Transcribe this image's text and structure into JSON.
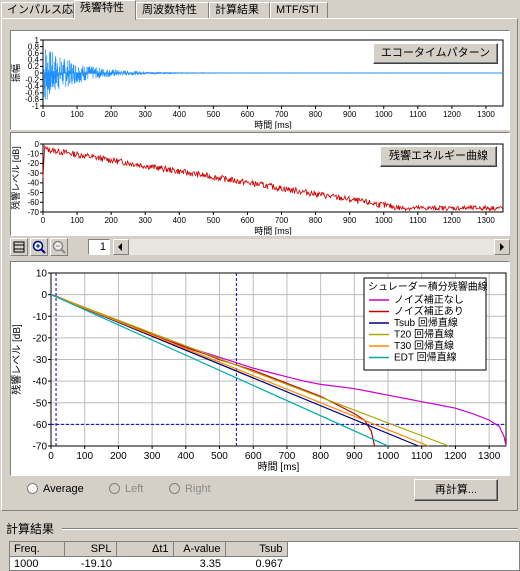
{
  "tabs": [
    {
      "label": "インパルス応答",
      "active": false
    },
    {
      "label": "残響特性",
      "active": true
    },
    {
      "label": "周波数特性",
      "active": false
    },
    {
      "label": "計算結果",
      "active": false
    },
    {
      "label": "MTF/STI",
      "active": false
    }
  ],
  "echo_chart": {
    "button_label": "エコータイムパターン",
    "ylabel": "振幅",
    "xlabel": "時間 [ms]",
    "y_ticks": [
      "1",
      "0.8",
      "0.6",
      "0.4",
      "0.2",
      "0",
      "-0.2",
      "-0.4",
      "-0.6",
      "-0.8",
      "-1"
    ],
    "x_ticks": [
      "0",
      "100",
      "200",
      "300",
      "400",
      "500",
      "600",
      "700",
      "800",
      "900",
      "1000",
      "1100",
      "1200",
      "1300"
    ],
    "color": "#1e90ff"
  },
  "energy_chart": {
    "button_label": "残響エネルギー曲線",
    "ylabel": "残響レベル [dB]",
    "xlabel": "時間 [ms]",
    "y_ticks": [
      "0",
      "-10",
      "-20",
      "-30",
      "-40",
      "-50",
      "-60",
      "-70"
    ],
    "x_ticks": [
      "0",
      "100",
      "200",
      "300",
      "400",
      "500",
      "600",
      "700",
      "800",
      "900",
      "1000",
      "1100",
      "1200",
      "1300"
    ],
    "color": "#cc0000"
  },
  "toolbar": {
    "page_value": "1"
  },
  "chart_data": {
    "type": "line",
    "xlabel": "時間 [ms]",
    "ylabel": "残響レベル [dB]",
    "xlim": [
      0,
      1350
    ],
    "ylim": [
      -70,
      10
    ],
    "x_ticks": [
      "0",
      "100",
      "200",
      "300",
      "400",
      "500",
      "600",
      "700",
      "800",
      "900",
      "1000",
      "1100",
      "1200",
      "1300"
    ],
    "y_ticks": [
      "10",
      "0",
      "-10",
      "-20",
      "-30",
      "-40",
      "-50",
      "-60",
      "-70"
    ],
    "grid": true,
    "legend_title": "シュレーダー積分残響曲線",
    "legend_position": "top-right",
    "markers": {
      "vertical_lines_ms": [
        15,
        550
      ],
      "horizontal_line_db": -60
    },
    "series": [
      {
        "name": "ノイズ補正なし",
        "color": "#cc00cc",
        "x": [
          0,
          20,
          50,
          100,
          150,
          200,
          250,
          300,
          350,
          400,
          450,
          500,
          550,
          600,
          650,
          700,
          750,
          800,
          850,
          900,
          950,
          1000,
          1050,
          1100,
          1150,
          1200,
          1250,
          1300,
          1330,
          1345,
          1350
        ],
        "y": [
          0,
          -1,
          -3,
          -6,
          -9,
          -12,
          -15,
          -18.5,
          -21.5,
          -24,
          -26.5,
          -29,
          -31.5,
          -34,
          -36,
          -38,
          -40,
          -41.5,
          -42.5,
          -43.5,
          -45,
          -46.5,
          -48,
          -49.5,
          -51,
          -52.5,
          -55,
          -58,
          -61,
          -66,
          -70
        ]
      },
      {
        "name": "ノイズ補正あり",
        "color": "#cc0000",
        "x": [
          0,
          20,
          50,
          100,
          150,
          200,
          250,
          300,
          350,
          400,
          450,
          500,
          550,
          600,
          650,
          700,
          750,
          800,
          850,
          900,
          930,
          950,
          960
        ],
        "y": [
          0,
          -1,
          -3,
          -6,
          -9,
          -12,
          -15,
          -18.5,
          -21.5,
          -24.5,
          -27,
          -30,
          -32.5,
          -35,
          -38,
          -41,
          -44,
          -47,
          -51,
          -55,
          -58,
          -63,
          -70
        ]
      },
      {
        "name": "Tsub 回帰直線",
        "color": "#000080",
        "x": [
          0,
          1090
        ],
        "y": [
          0,
          -70
        ]
      },
      {
        "name": "T20 回帰直線",
        "color": "#aaaa00",
        "x": [
          0,
          1180
        ],
        "y": [
          0,
          -70
        ]
      },
      {
        "name": "T30 回帰直線",
        "color": "#ff8800",
        "x": [
          0,
          1120
        ],
        "y": [
          0,
          -70
        ]
      },
      {
        "name": "EDT 回帰直線",
        "color": "#00aaaa",
        "x": [
          0,
          1000
        ],
        "y": [
          0,
          -70
        ]
      }
    ]
  },
  "recalc_button": "再計算...",
  "radios": [
    {
      "label": "Average",
      "enabled": true
    },
    {
      "label": "Left",
      "enabled": false
    },
    {
      "label": "Right",
      "enabled": false
    }
  ],
  "results": {
    "title": "計算結果",
    "columns": [
      "Freq.",
      "SPL",
      "Δt1",
      "A-value",
      "Tsub"
    ],
    "rows": [
      [
        "1000",
        "-19.10",
        "",
        "3.35",
        "0.967"
      ]
    ]
  }
}
